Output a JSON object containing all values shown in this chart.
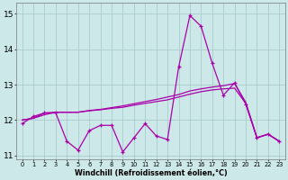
{
  "x": [
    0,
    1,
    2,
    3,
    4,
    5,
    6,
    7,
    8,
    9,
    10,
    11,
    12,
    13,
    14,
    15,
    16,
    17,
    18,
    19,
    20,
    21,
    22,
    23
  ],
  "line1": [
    11.9,
    12.1,
    12.2,
    12.2,
    11.4,
    11.15,
    11.7,
    11.85,
    11.85,
    11.1,
    11.5,
    11.9,
    11.55,
    11.45,
    13.5,
    14.95,
    14.65,
    13.6,
    12.7,
    13.05,
    12.45,
    11.5,
    11.6,
    11.4
  ],
  "line2": [
    12.0,
    12.05,
    12.15,
    12.22,
    12.22,
    12.22,
    12.27,
    12.3,
    12.35,
    12.4,
    12.46,
    12.52,
    12.58,
    12.65,
    12.72,
    12.82,
    12.88,
    12.93,
    12.97,
    13.03,
    12.5,
    11.5,
    11.6,
    11.4
  ],
  "line3": [
    12.0,
    12.05,
    12.2,
    12.22,
    12.22,
    12.22,
    12.26,
    12.29,
    12.33,
    12.36,
    12.42,
    12.47,
    12.52,
    12.57,
    12.65,
    12.73,
    12.8,
    12.85,
    12.88,
    12.9,
    12.47,
    11.5,
    11.6,
    11.4
  ],
  "line_color": "#aa00aa",
  "bg_color": "#cce8e8",
  "grid_color": "#aacccc",
  "xlabel": "Windchill (Refroidissement éolien,°C)",
  "ylim": [
    10.9,
    15.3
  ],
  "xlim": [
    -0.5,
    23.5
  ],
  "yticks": [
    11,
    12,
    13,
    14,
    15
  ],
  "xticks": [
    0,
    1,
    2,
    3,
    4,
    5,
    6,
    7,
    8,
    9,
    10,
    11,
    12,
    13,
    14,
    15,
    16,
    17,
    18,
    19,
    20,
    21,
    22,
    23
  ]
}
